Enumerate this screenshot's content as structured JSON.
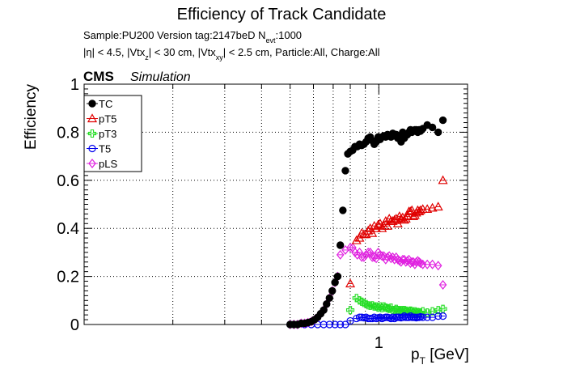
{
  "title": "Efficiency of Track Candidate",
  "subtitle_line1_prefix": "Sample:PU200   Version tag:2147beD  N",
  "subtitle_line1_sub": "evt",
  "subtitle_line1_suffix": ":1000",
  "subtitle_line2_a": "|η| < 4.5, |Vtx",
  "subtitle_line2_sub1": "z",
  "subtitle_line2_b": "| < 30 cm, |Vtx",
  "subtitle_line2_sub2": "xy",
  "subtitle_line2_c": "| < 2.5 cm, Particle:All, Charge:All",
  "cms_label": "CMS",
  "simulation_label": "Simulation",
  "ylabel": "Efficiency",
  "xlabel_main": "p",
  "xlabel_sub": "T",
  "xlabel_unit": " [GeV]",
  "colors": {
    "TC": "#000000",
    "pT5": "#e00000",
    "pT3": "#22dd22",
    "T5": "#0000ee",
    "pLS": "#e020e0"
  },
  "chart_data": {
    "type": "scatter",
    "x_scale": "log",
    "xlim": [
      0.1,
      2.0
    ],
    "ylim": [
      0,
      1.0
    ],
    "grid": true,
    "legend_position": "top-left",
    "x_ticks": [
      "1"
    ],
    "y_ticks": [
      "0",
      "0.2",
      "0.4",
      "0.6",
      "0.8",
      "1"
    ],
    "series": [
      {
        "name": "TC",
        "marker": "filled-circle",
        "x": [
          0.5,
          0.515,
          0.53,
          0.545,
          0.56,
          0.575,
          0.59,
          0.605,
          0.62,
          0.635,
          0.65,
          0.665,
          0.68,
          0.695,
          0.71,
          0.725,
          0.74,
          0.755,
          0.77,
          0.785,
          0.8,
          0.815,
          0.83,
          0.845,
          0.86,
          0.875,
          0.89,
          0.905,
          0.92,
          0.935,
          0.95,
          0.965,
          0.98,
          0.995,
          1.01,
          1.025,
          1.04,
          1.055,
          1.07,
          1.085,
          1.1,
          1.115,
          1.13,
          1.145,
          1.16,
          1.175,
          1.19,
          1.205,
          1.22,
          1.235,
          1.25,
          1.265,
          1.28,
          1.295,
          1.31,
          1.325,
          1.34,
          1.355,
          1.37,
          1.385,
          1.41,
          1.46,
          1.52,
          1.59,
          1.65
        ],
        "y": [
          0.0,
          0.0,
          0.0,
          0.005,
          0.005,
          0.008,
          0.012,
          0.02,
          0.03,
          0.045,
          0.06,
          0.085,
          0.11,
          0.14,
          0.175,
          0.2,
          0.33,
          0.475,
          0.64,
          0.71,
          0.72,
          0.725,
          0.74,
          0.74,
          0.75,
          0.745,
          0.75,
          0.76,
          0.775,
          0.78,
          0.765,
          0.75,
          0.76,
          0.78,
          0.77,
          0.78,
          0.785,
          0.78,
          0.79,
          0.785,
          0.78,
          0.795,
          0.785,
          0.79,
          0.775,
          0.775,
          0.76,
          0.8,
          0.775,
          0.79,
          0.79,
          0.8,
          0.81,
          0.8,
          0.805,
          0.81,
          0.81,
          0.8,
          0.81,
          0.805,
          0.815,
          0.83,
          0.82,
          0.8,
          0.85
        ]
      },
      {
        "name": "pT5",
        "marker": "open-triangle",
        "x": [
          0.8,
          0.84,
          0.86,
          0.875,
          0.89,
          0.905,
          0.92,
          0.935,
          0.95,
          0.965,
          0.98,
          0.995,
          1.01,
          1.025,
          1.04,
          1.055,
          1.07,
          1.085,
          1.1,
          1.115,
          1.13,
          1.145,
          1.16,
          1.175,
          1.19,
          1.205,
          1.22,
          1.235,
          1.25,
          1.265,
          1.28,
          1.295,
          1.31,
          1.325,
          1.34,
          1.355,
          1.37,
          1.385,
          1.41,
          1.46,
          1.52,
          1.59,
          1.65
        ],
        "y": [
          0.17,
          0.35,
          0.36,
          0.38,
          0.375,
          0.375,
          0.39,
          0.4,
          0.38,
          0.41,
          0.4,
          0.415,
          0.42,
          0.4,
          0.41,
          0.43,
          0.41,
          0.44,
          0.43,
          0.43,
          0.435,
          0.44,
          0.42,
          0.45,
          0.44,
          0.445,
          0.435,
          0.44,
          0.45,
          0.47,
          0.47,
          0.475,
          0.45,
          0.455,
          0.465,
          0.475,
          0.47,
          0.475,
          0.48,
          0.48,
          0.485,
          0.49,
          0.6
        ]
      },
      {
        "name": "pT3",
        "marker": "open-cross",
        "x": [
          0.8,
          0.84,
          0.86,
          0.875,
          0.89,
          0.905,
          0.92,
          0.935,
          0.95,
          0.965,
          0.98,
          0.995,
          1.01,
          1.025,
          1.04,
          1.055,
          1.07,
          1.085,
          1.1,
          1.115,
          1.13,
          1.145,
          1.16,
          1.175,
          1.19,
          1.205,
          1.22,
          1.235,
          1.25,
          1.265,
          1.28,
          1.295,
          1.31,
          1.325,
          1.34,
          1.355,
          1.37,
          1.385,
          1.41,
          1.46,
          1.52,
          1.59,
          1.65
        ],
        "y": [
          0.06,
          0.11,
          0.1,
          0.095,
          0.09,
          0.085,
          0.08,
          0.078,
          0.08,
          0.075,
          0.075,
          0.07,
          0.075,
          0.068,
          0.075,
          0.07,
          0.068,
          0.065,
          0.07,
          0.06,
          0.06,
          0.065,
          0.06,
          0.06,
          0.058,
          0.06,
          0.06,
          0.058,
          0.055,
          0.055,
          0.058,
          0.055,
          0.05,
          0.055,
          0.05,
          0.052,
          0.05,
          0.05,
          0.055,
          0.05,
          0.055,
          0.06,
          0.065
        ]
      },
      {
        "name": "T5",
        "marker": "open-circle",
        "x": [
          0.5,
          0.53,
          0.56,
          0.59,
          0.62,
          0.65,
          0.68,
          0.71,
          0.74,
          0.77,
          0.8,
          0.84,
          0.86,
          0.875,
          0.89,
          0.905,
          0.92,
          0.935,
          0.95,
          0.965,
          0.98,
          0.995,
          1.01,
          1.025,
          1.04,
          1.055,
          1.07,
          1.085,
          1.1,
          1.115,
          1.13,
          1.145,
          1.16,
          1.175,
          1.19,
          1.205,
          1.22,
          1.235,
          1.25,
          1.265,
          1.28,
          1.295,
          1.31,
          1.325,
          1.34,
          1.355,
          1.37,
          1.385,
          1.41,
          1.46,
          1.52,
          1.59,
          1.65
        ],
        "y": [
          0.0,
          0.0,
          0.0,
          0.0,
          0.0,
          0.0,
          0.0,
          0.0,
          0.0,
          0.0,
          0.015,
          0.025,
          0.03,
          0.03,
          0.028,
          0.03,
          0.025,
          0.025,
          0.025,
          0.03,
          0.025,
          0.028,
          0.03,
          0.025,
          0.028,
          0.03,
          0.03,
          0.028,
          0.025,
          0.03,
          0.025,
          0.03,
          0.03,
          0.03,
          0.028,
          0.03,
          0.035,
          0.03,
          0.03,
          0.03,
          0.035,
          0.03,
          0.03,
          0.03,
          0.028,
          0.03,
          0.03,
          0.032,
          0.03,
          0.03,
          0.03,
          0.035,
          0.035
        ]
      },
      {
        "name": "pLS",
        "marker": "open-diamond",
        "x": [
          0.5,
          0.515,
          0.53,
          0.545,
          0.56,
          0.575,
          0.59,
          0.605,
          0.62,
          0.635,
          0.65,
          0.665,
          0.68,
          0.695,
          0.71,
          0.725,
          0.74,
          0.77,
          0.8,
          0.815,
          0.83,
          0.845,
          0.86,
          0.875,
          0.89,
          0.905,
          0.92,
          0.935,
          0.95,
          0.965,
          0.98,
          0.995,
          1.01,
          1.025,
          1.04,
          1.055,
          1.07,
          1.085,
          1.1,
          1.115,
          1.13,
          1.145,
          1.16,
          1.175,
          1.19,
          1.205,
          1.22,
          1.235,
          1.25,
          1.265,
          1.28,
          1.295,
          1.31,
          1.325,
          1.34,
          1.355,
          1.37,
          1.385,
          1.41,
          1.46,
          1.52,
          1.59,
          1.65
        ],
        "y": [
          0.0,
          0.0,
          0.0,
          0.005,
          0.005,
          0.008,
          0.012,
          0.02,
          0.03,
          0.045,
          0.06,
          0.085,
          0.11,
          0.14,
          0.175,
          0.2,
          0.29,
          0.31,
          0.32,
          0.32,
          0.3,
          0.29,
          0.3,
          0.28,
          0.28,
          0.29,
          0.3,
          0.3,
          0.28,
          0.28,
          0.275,
          0.3,
          0.29,
          0.285,
          0.285,
          0.27,
          0.28,
          0.285,
          0.275,
          0.28,
          0.27,
          0.28,
          0.27,
          0.265,
          0.26,
          0.27,
          0.27,
          0.26,
          0.265,
          0.27,
          0.255,
          0.26,
          0.26,
          0.25,
          0.26,
          0.265,
          0.26,
          0.255,
          0.25,
          0.25,
          0.25,
          0.245,
          0.165
        ]
      }
    ]
  }
}
